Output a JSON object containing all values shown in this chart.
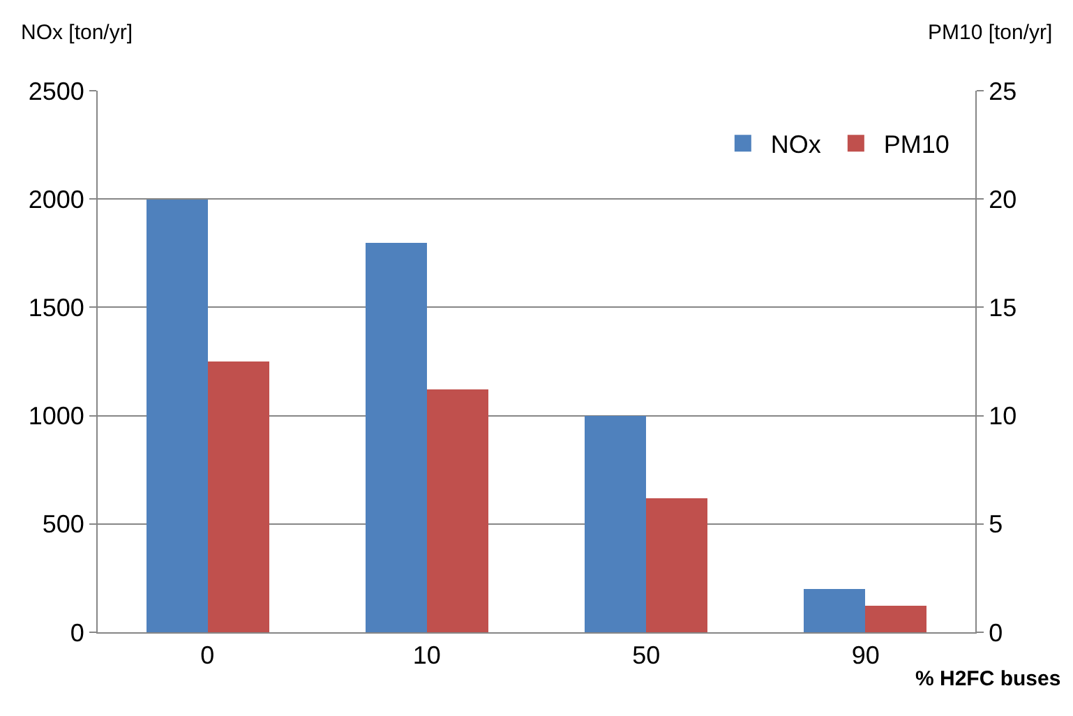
{
  "chart_data": {
    "type": "bar",
    "xlabel": "% H2FC buses",
    "ylabel": "NOx [ton/yr]",
    "y2label": "PM10 [ton/yr]",
    "categories": [
      "0",
      "10",
      "50",
      "90"
    ],
    "series": [
      {
        "name": "NOx",
        "color": "#4f81bd",
        "values": [
          2000,
          1800,
          1000,
          200
        ]
      },
      {
        "name": "PM10",
        "color": "#c0504d",
        "values": [
          12.5,
          11.2,
          6.2,
          1.2
        ],
        "axis": "y2"
      }
    ],
    "ylim": [
      0,
      2500
    ],
    "yticks": [
      0,
      500,
      1000,
      1500,
      2000,
      2500
    ],
    "y2lim": [
      0,
      25
    ],
    "y2ticks": [
      0,
      5,
      10,
      15,
      20,
      25
    ],
    "grid": "y",
    "legend": "top right"
  }
}
